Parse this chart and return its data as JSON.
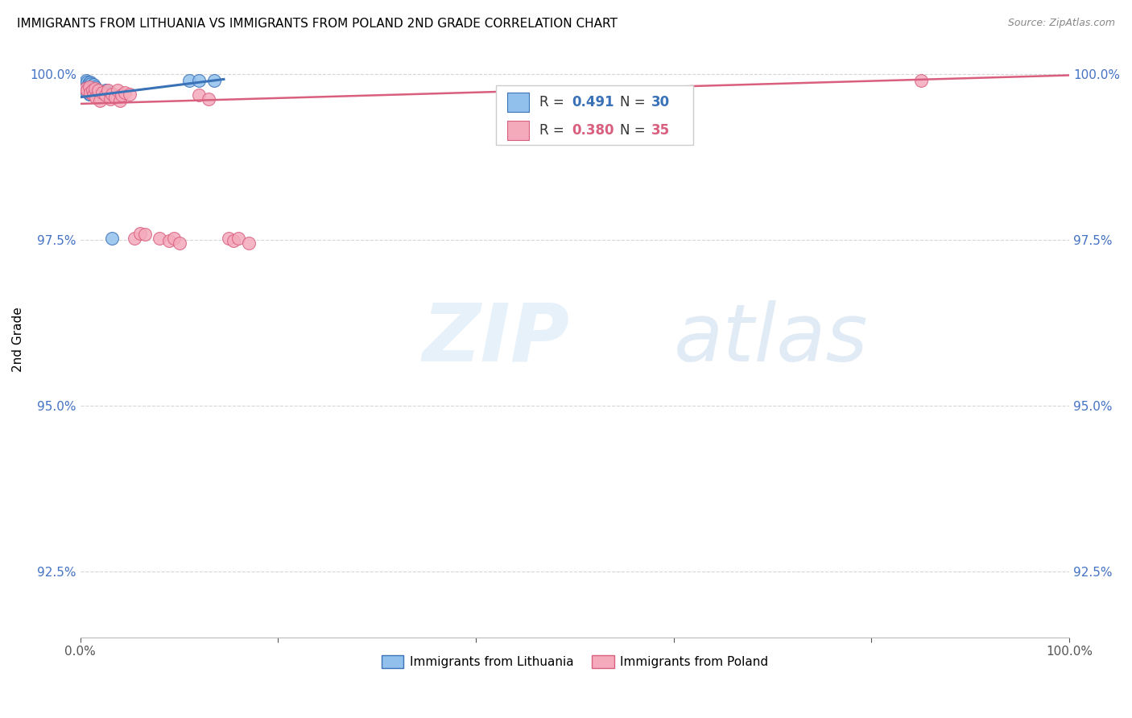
{
  "title": "IMMIGRANTS FROM LITHUANIA VS IMMIGRANTS FROM POLAND 2ND GRADE CORRELATION CHART",
  "source": "Source: ZipAtlas.com",
  "ylabel": "2nd Grade",
  "xlim": [
    0.0,
    1.0
  ],
  "ylim": [
    0.915,
    1.005
  ],
  "yticks": [
    0.925,
    0.95,
    0.975,
    1.0
  ],
  "ytick_labels": [
    "92.5%",
    "95.0%",
    "97.5%",
    "100.0%"
  ],
  "xticks": [
    0.0,
    0.2,
    0.4,
    0.6,
    0.8,
    1.0
  ],
  "xtick_labels": [
    "0.0%",
    "",
    "",
    "",
    "",
    "100.0%"
  ],
  "legend_label1": "Immigrants from Lithuania",
  "legend_label2": "Immigrants from Poland",
  "color_blue": "#92C0EC",
  "color_blue_line": "#3A72B8",
  "color_pink": "#F4AABB",
  "color_pink_line": "#D95F7F",
  "color_axis_labels": "#4472C4",
  "blue_x": [
    0.005,
    0.005,
    0.006,
    0.006,
    0.007,
    0.007,
    0.008,
    0.008,
    0.009,
    0.009,
    0.01,
    0.01,
    0.01,
    0.011,
    0.011,
    0.012,
    0.012,
    0.013,
    0.013,
    0.014,
    0.015,
    0.016,
    0.018,
    0.02,
    0.025,
    0.03,
    0.032,
    0.11,
    0.12,
    0.135
  ],
  "blue_y": [
    0.9985,
    0.9975,
    0.999,
    0.998,
    0.9988,
    0.9978,
    0.9985,
    0.9975,
    0.9982,
    0.997,
    0.9988,
    0.9979,
    0.997,
    0.9985,
    0.9975,
    0.9983,
    0.9972,
    0.9984,
    0.9973,
    0.9978,
    0.998,
    0.9976,
    0.9975,
    0.9971,
    0.9975,
    0.9972,
    0.9752,
    0.999,
    0.999,
    0.999
  ],
  "pink_x": [
    0.005,
    0.007,
    0.009,
    0.01,
    0.012,
    0.013,
    0.015,
    0.016,
    0.018,
    0.02,
    0.022,
    0.025,
    0.028,
    0.03,
    0.032,
    0.035,
    0.038,
    0.04,
    0.042,
    0.045,
    0.05,
    0.055,
    0.06,
    0.065,
    0.08,
    0.09,
    0.095,
    0.1,
    0.12,
    0.13,
    0.15,
    0.155,
    0.16,
    0.17,
    0.85
  ],
  "pink_y": [
    0.9978,
    0.9975,
    0.998,
    0.9972,
    0.9975,
    0.9968,
    0.9978,
    0.9965,
    0.9975,
    0.996,
    0.9972,
    0.9968,
    0.9975,
    0.9962,
    0.997,
    0.9965,
    0.9975,
    0.996,
    0.9968,
    0.9972,
    0.997,
    0.9752,
    0.976,
    0.9758,
    0.9752,
    0.9748,
    0.9752,
    0.9745,
    0.9968,
    0.9962,
    0.9752,
    0.9748,
    0.9752,
    0.9745,
    0.999
  ],
  "blue_line_x0": 0.0,
  "blue_line_x1": 0.145,
  "blue_line_y0": 0.9965,
  "blue_line_y1": 0.9992,
  "pink_line_x0": 0.0,
  "pink_line_x1": 1.0,
  "pink_line_y0": 0.9955,
  "pink_line_y1": 0.9998
}
